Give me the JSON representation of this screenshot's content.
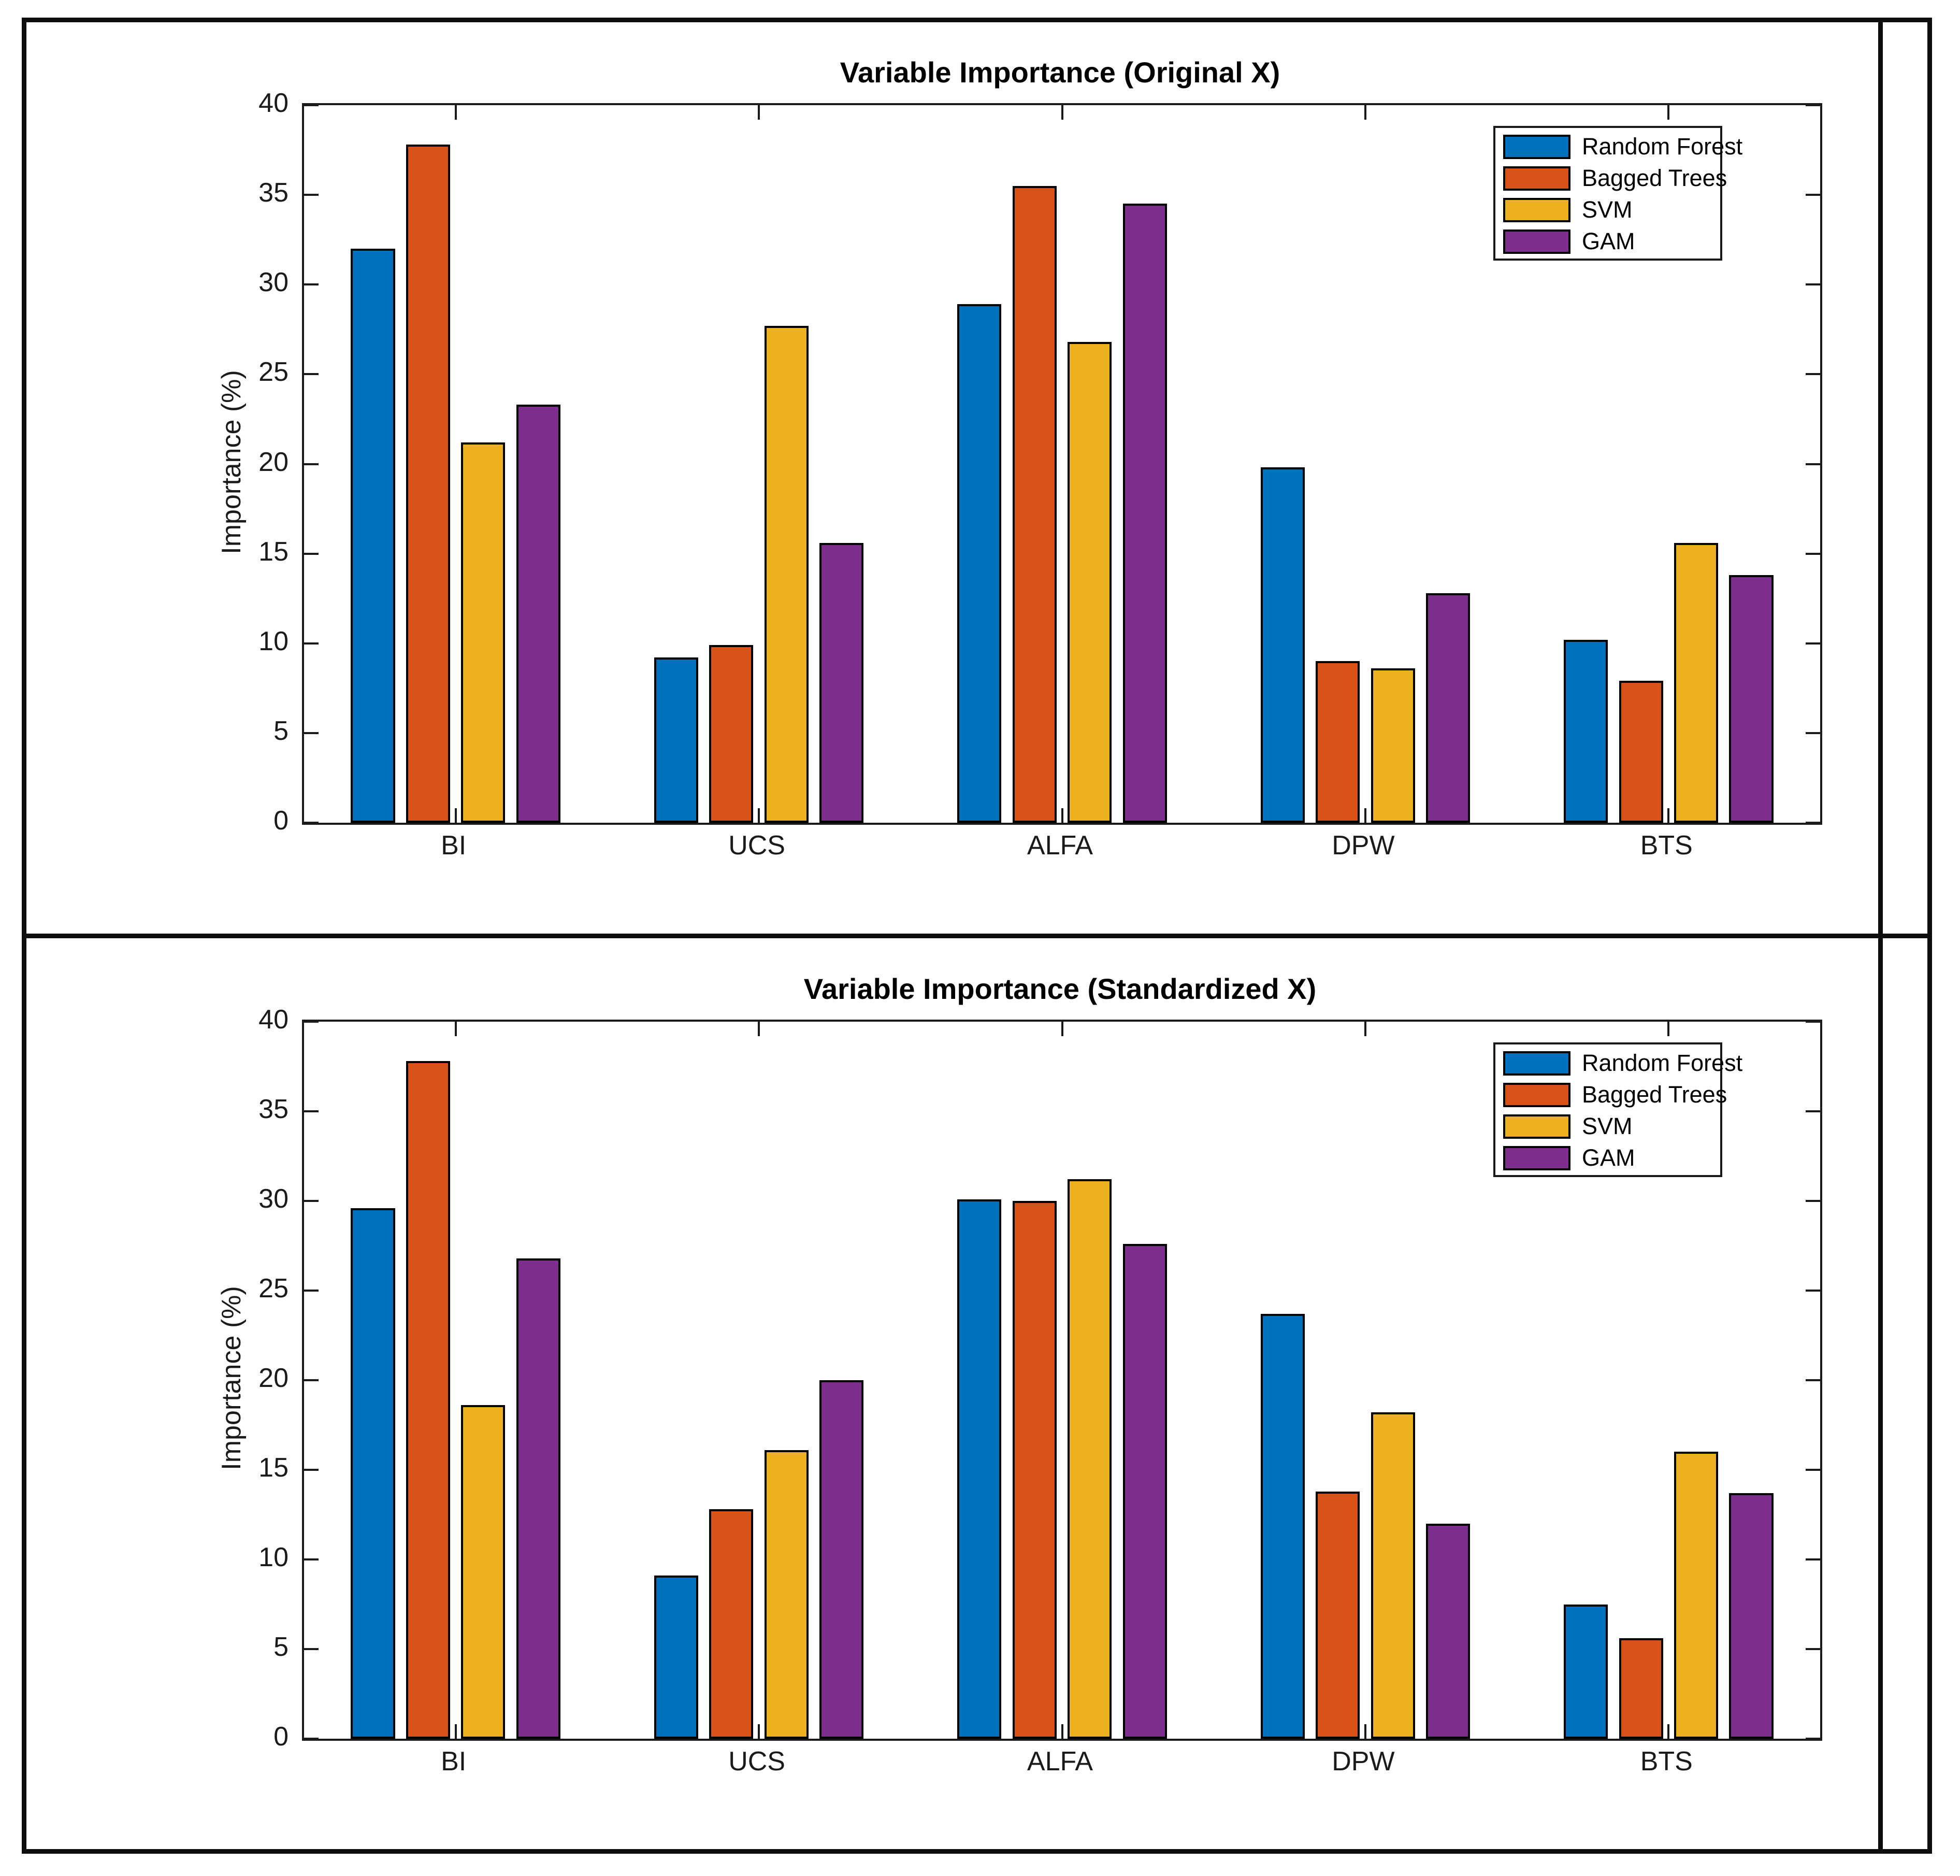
{
  "page": {
    "background": "#ffffff",
    "frame_color": "#0d0d0d"
  },
  "chart_data": [
    {
      "type": "bar",
      "title": "Variable Importance (Original X)",
      "xlabel": "",
      "ylabel": "Importance (%)",
      "ylim": [
        0,
        40
      ],
      "yticks": [
        0,
        5,
        10,
        15,
        20,
        25,
        30,
        35,
        40
      ],
      "grid": false,
      "legend_position": "top-right",
      "categories": [
        "BI",
        "UCS",
        "ALFA",
        "DPW",
        "BTS"
      ],
      "series": [
        {
          "name": "Random Forest",
          "color": "#0072BD",
          "values": [
            32.0,
            9.2,
            28.9,
            19.8,
            10.2
          ]
        },
        {
          "name": "Bagged Trees",
          "color": "#D95319",
          "values": [
            37.8,
            9.9,
            35.5,
            9.0,
            7.9
          ]
        },
        {
          "name": "SVM",
          "color": "#EDB120",
          "values": [
            21.2,
            27.7,
            26.8,
            8.6,
            15.6
          ]
        },
        {
          "name": "GAM",
          "color": "#7E2F8E",
          "values": [
            23.3,
            15.6,
            34.5,
            12.8,
            13.8
          ]
        }
      ]
    },
    {
      "type": "bar",
      "title": "Variable Importance (Standardized X)",
      "xlabel": "",
      "ylabel": "Importance (%)",
      "ylim": [
        0,
        40
      ],
      "yticks": [
        0,
        5,
        10,
        15,
        20,
        25,
        30,
        35,
        40
      ],
      "grid": false,
      "legend_position": "top-right",
      "categories": [
        "BI",
        "UCS",
        "ALFA",
        "DPW",
        "BTS"
      ],
      "series": [
        {
          "name": "Random Forest",
          "color": "#0072BD",
          "values": [
            29.6,
            9.1,
            30.1,
            23.7,
            7.5
          ]
        },
        {
          "name": "Bagged Trees",
          "color": "#D95319",
          "values": [
            37.8,
            12.8,
            30.0,
            13.8,
            5.6
          ]
        },
        {
          "name": "SVM",
          "color": "#EDB120",
          "values": [
            18.6,
            16.1,
            31.2,
            18.2,
            16.0
          ]
        },
        {
          "name": "GAM",
          "color": "#7E2F8E",
          "values": [
            26.8,
            20.0,
            27.6,
            12.0,
            13.7
          ]
        }
      ]
    }
  ]
}
